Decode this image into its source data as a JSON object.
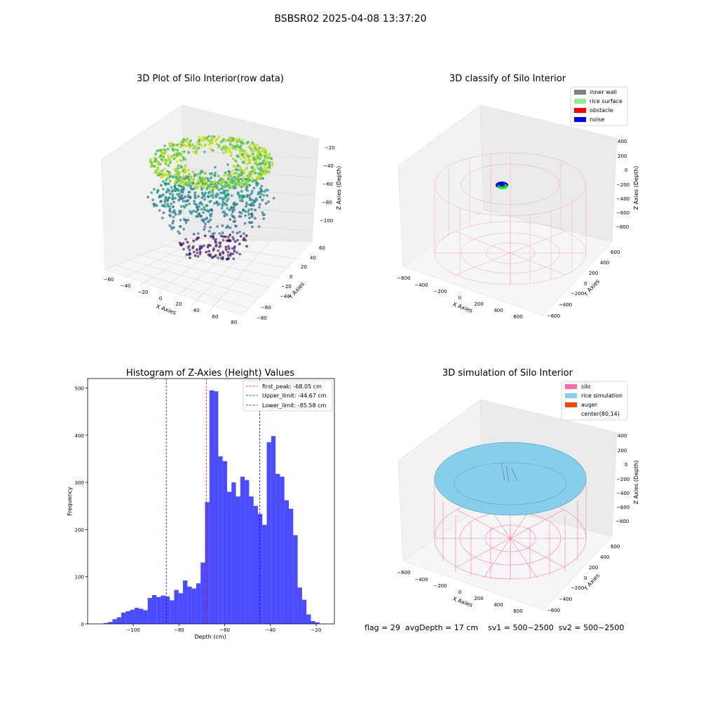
{
  "figure": {
    "suptitle": "BSBSR02 2025-04-08 13:37:20",
    "footer": "flag = 29  avgDepth = 17 cm    sv1 = 500~2500  sv2 = 500~2500"
  },
  "panels": {
    "p1": {
      "title": "3D Plot of Silo Interior(row data)",
      "xlabel": "X Axies",
      "ylabel": "Y Axies",
      "zlabel": "Z Axies (Depth)",
      "xticks": [
        "−60",
        "−40",
        "−20",
        "0",
        "20",
        "40",
        "60",
        "80"
      ],
      "yticks": [
        "−80",
        "−60",
        "−40",
        "−20",
        "0",
        "20",
        "40",
        "60"
      ],
      "zticks": [
        "−20",
        "−40",
        "−60",
        "−80",
        "−100"
      ]
    },
    "p2": {
      "title": "3D classify of Silo Interior",
      "xlabel": "X Axies",
      "ylabel": "Y Axies",
      "zlabel": "Z Axies (Depth)",
      "xticks": [
        "−600",
        "−400",
        "−200",
        "0",
        "200",
        "400",
        "600"
      ],
      "yticks": [
        "−600",
        "−400",
        "−200",
        "0",
        "200",
        "400",
        "600"
      ],
      "zticks": [
        "400",
        "200",
        "0",
        "−200",
        "−400",
        "−600",
        "−800"
      ],
      "legend": [
        {
          "label": "inner wall",
          "color": "#808080"
        },
        {
          "label": "rice surface",
          "color": "#90ee90"
        },
        {
          "label": "obstacle",
          "color": "#ff0000"
        },
        {
          "label": "noise",
          "color": "#0000ff"
        }
      ]
    },
    "p4": {
      "title": "3D simulation of Silo Interior",
      "xlabel": "X Axies",
      "ylabel": "Y Axies",
      "zlabel": "Z Axies (Depth)",
      "xticks": [
        "−600",
        "−400",
        "−200",
        "0",
        "200",
        "400",
        "600"
      ],
      "yticks": [
        "−600",
        "−400",
        "−200",
        "0",
        "200",
        "400",
        "600"
      ],
      "zticks": [
        "400",
        "200",
        "0",
        "−200",
        "−400",
        "−600",
        "−800"
      ],
      "legend": [
        {
          "label": "silo",
          "color": "#ff69b4"
        },
        {
          "label": "rice simulation",
          "color": "#87ceeb"
        },
        {
          "label": "auger",
          "color": "#ff4500"
        },
        {
          "label": "center(80,14)",
          "color": "none"
        }
      ]
    }
  },
  "chart_data": [
    {
      "type": "scatter",
      "title": "3D Plot of Silo Interior(row data)",
      "xlabel": "X Axies",
      "ylabel": "Y Axies",
      "zlabel": "Z Axies (Depth)",
      "xlim": [
        -60,
        80
      ],
      "ylim": [
        -80,
        60
      ],
      "zlim": [
        -110,
        -20
      ],
      "colormap": "viridis",
      "description_points": "dense cloud of points; top surface near z = -30 (yellow-green), sparse lower points to z = -110 (purple)"
    },
    {
      "type": "scatter",
      "title": "3D classify of Silo Interior",
      "xlabel": "X Axies",
      "ylabel": "Y Axies",
      "zlabel": "Z Axies (Depth)",
      "xlim": [
        -600,
        600
      ],
      "ylim": [
        -600,
        600
      ],
      "zlim": [
        -800,
        400
      ],
      "series": [
        {
          "name": "inner wall",
          "color": "#808080"
        },
        {
          "name": "rice surface",
          "color": "#90ee90"
        },
        {
          "name": "obstacle",
          "color": "#ff0000"
        },
        {
          "name": "noise",
          "color": "#0000ff"
        }
      ]
    },
    {
      "type": "bar",
      "title": "Histogram of Z-Axies (Height) Values",
      "xlabel": "Depth (cm)",
      "ylabel": "Frequency",
      "xlim": [
        -120,
        -12
      ],
      "ylim": [
        0,
        520
      ],
      "xticks": [
        -100,
        -80,
        -60,
        -40,
        -20
      ],
      "yticks": [
        0,
        100,
        200,
        300,
        400,
        500
      ],
      "bin_start": -113,
      "bin_width": 1.93,
      "values": [
        2,
        4,
        10,
        14,
        24,
        27,
        30,
        34,
        32,
        29,
        55,
        61,
        57,
        60,
        58,
        50,
        72,
        65,
        92,
        79,
        75,
        86,
        130,
        258,
        495,
        493,
        355,
        345,
        280,
        300,
        270,
        312,
        305,
        270,
        250,
        233,
        210,
        385,
        398,
        318,
        312,
        262,
        244,
        188,
        77,
        51,
        20,
        6,
        3
      ],
      "bar_color": "#0000ff",
      "vlines": [
        {
          "name": "first_peak: -68.05 cm",
          "x": -68.05,
          "color": "#ff0000"
        },
        {
          "name": "Upper_limit: -44.67 cm",
          "x": -44.67,
          "color": "#0000ff"
        },
        {
          "name": "Lower_limit: -85.58 cm",
          "x": -85.58,
          "color": "#0000ff"
        }
      ]
    },
    {
      "type": "scatter",
      "title": "3D simulation of Silo Interior",
      "xlabel": "X Axies",
      "ylabel": "Y Axies",
      "zlabel": "Z Axies (Depth)",
      "xlim": [
        -600,
        600
      ],
      "ylim": [
        -600,
        600
      ],
      "zlim": [
        -800,
        400
      ],
      "series": [
        {
          "name": "silo",
          "color": "#ff69b4"
        },
        {
          "name": "rice simulation",
          "color": "#87ceeb"
        },
        {
          "name": "auger",
          "color": "#ff4500"
        },
        {
          "name": "center(80,14)"
        }
      ]
    }
  ]
}
